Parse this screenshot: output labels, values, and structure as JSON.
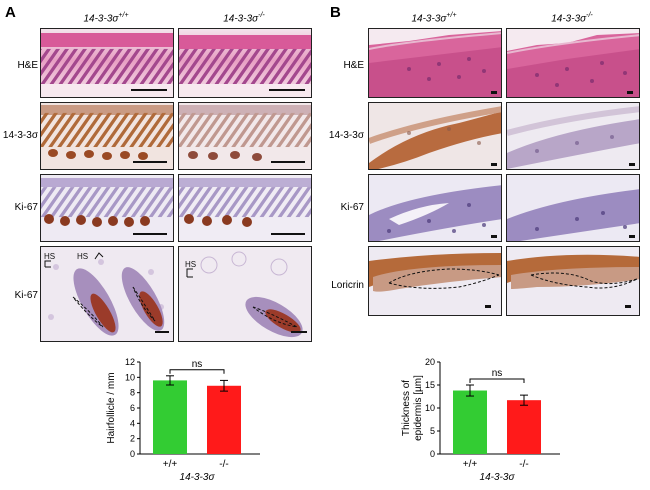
{
  "panel_a": {
    "letter": "A",
    "columns": [
      "14-3-3σ+/+",
      "14-3-3σ-/-"
    ],
    "rows": [
      "H&E",
      "14-3-3σ",
      "Ki-67",
      "Ki-67"
    ],
    "hs_label": "HS"
  },
  "panel_b": {
    "letter": "B",
    "columns": [
      "14-3-3σ+/+",
      "14-3-3σ-/-"
    ],
    "rows": [
      "H&E",
      "14-3-3σ",
      "Ki-67",
      "Loricrin"
    ]
  },
  "colors": {
    "wildtype_bar": "#33cc33",
    "knockout_bar": "#ff1a1a"
  },
  "chart_data": [
    {
      "type": "bar",
      "categories": [
        "+/+",
        "-/-"
      ],
      "values": [
        9.6,
        8.9
      ],
      "errors": [
        0.6,
        0.7
      ],
      "ylabel": "Hairfollicle / mm",
      "xlabel": "14-3-3σ",
      "ylim": [
        0,
        12
      ],
      "yticks": [
        0,
        2,
        4,
        6,
        8,
        10,
        12
      ],
      "significance": "ns",
      "grid": false
    },
    {
      "type": "bar",
      "categories": [
        "+/+",
        "-/-"
      ],
      "values": [
        13.8,
        11.7
      ],
      "errors": [
        1.2,
        1.1
      ],
      "ylabel": "Thickness of epidermis [µm]",
      "xlabel": "14-3-3σ",
      "ylim": [
        0,
        20
      ],
      "yticks": [
        0,
        5,
        10,
        15,
        20
      ],
      "significance": "ns",
      "grid": false
    }
  ]
}
